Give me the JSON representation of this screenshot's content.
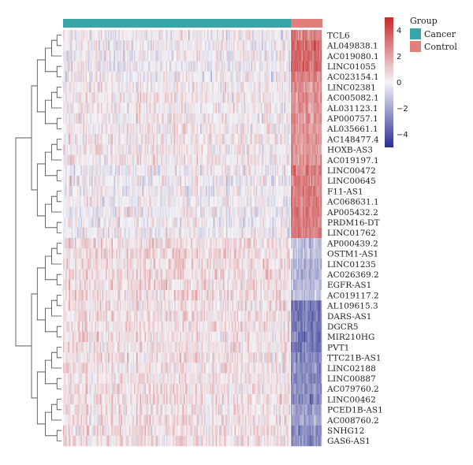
{
  "chart_data": {
    "type": "heatmap",
    "title": "",
    "rows": [
      "TCL6",
      "AL049838.1",
      "AC019080.1",
      "LINC01055",
      "AC023154.1",
      "LINC02381",
      "AC005082.1",
      "AL031123.1",
      "AP000757.1",
      "AL035661.1",
      "AC148477.4",
      "HOXB-AS3",
      "AC019197.1",
      "LINC00472",
      "LINC00645",
      "F11-AS1",
      "AC068631.1",
      "AP005432.2",
      "PRDM16-DT",
      "LINC01762",
      "AP000439.2",
      "OSTM1-AS1",
      "LINC01235",
      "AC026369.2",
      "EGFR-AS1",
      "AC019117.2",
      "AL109615.3",
      "DARS-AS1",
      "DGCR5",
      "MIR210HG",
      "PVT1",
      "TTC21B-AS1",
      "LINC02188",
      "LINC00887",
      "AC079760.2",
      "LINC00462",
      "PCED1B-AS1",
      "AC008760.2",
      "SNHG12",
      "GAS6-AS1"
    ],
    "groups": [
      {
        "name": "Cancer",
        "color": "#3aa5a8"
      },
      {
        "name": "Control",
        "color": "#e07f7b"
      }
    ],
    "group_legend_title": "Group",
    "color_scale": {
      "ticks": [
        4,
        2,
        0,
        -2,
        -4
      ],
      "range": [
        -5,
        5
      ],
      "low_color": "#2b2f8f",
      "mid_color": "#f4f4f8",
      "high_color": "#c62a2a"
    },
    "row_cluster_pattern": {
      "cancer_mean": [
        0,
        0,
        0,
        0,
        0,
        0.3,
        0.3,
        0.3,
        0.3,
        0.3,
        0.3,
        0.3,
        0.3,
        0,
        0,
        0,
        0,
        0,
        0,
        0,
        0.6,
        0.6,
        0.6,
        0.6,
        0.6,
        0.6,
        0.5,
        0.5,
        0.5,
        0.5,
        0.5,
        0.5,
        0.5,
        0.5,
        0.5,
        0.5,
        0.5,
        0.5,
        0.5,
        0.5
      ],
      "control_mean": [
        3,
        3.5,
        3.5,
        3.5,
        3,
        2.5,
        2.5,
        2.5,
        2.5,
        2.5,
        2.5,
        2.5,
        2.5,
        3,
        3,
        3,
        3,
        3,
        3,
        3,
        -1.2,
        -1.2,
        -1.5,
        -1.5,
        -1.2,
        -1.2,
        -3,
        -3,
        -3,
        -3,
        -3,
        -2.5,
        -2.5,
        -2.5,
        -2.5,
        -2.5,
        -2,
        -2,
        -2.5,
        -2.5
      ]
    }
  }
}
